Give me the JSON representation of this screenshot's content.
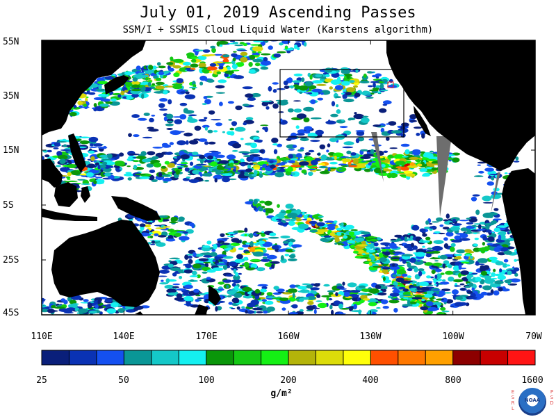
{
  "title": "July 01, 2019  Ascending Passes",
  "subtitle": "SSM/I + SSMIS Cloud Liquid Water (Karstens algorithm)",
  "lat_labels": [
    "55N",
    "35N",
    "15N",
    "5S",
    "25S",
    "45S"
  ],
  "lon_labels": [
    "110E",
    "140E",
    "170E",
    "160W",
    "130W",
    "100W",
    "70W"
  ],
  "colorbar": {
    "colors": [
      "#0a1f7a",
      "#0a32b4",
      "#1450f0",
      "#0a9696",
      "#14c8c8",
      "#14f0f0",
      "#0a960a",
      "#14c814",
      "#14f014",
      "#b4b40a",
      "#dcdc0a",
      "#ffff0a",
      "#ff5000",
      "#ff7800",
      "#ffa000",
      "#8c0000",
      "#c80000",
      "#ff1414"
    ],
    "tick_labels": [
      "25",
      "50",
      "100",
      "200",
      "400",
      "800",
      "1600"
    ]
  },
  "units": "g/m²",
  "logo": {
    "left_letters": "E S R L",
    "right_letters": "P S D",
    "center_text": "NOAA"
  }
}
